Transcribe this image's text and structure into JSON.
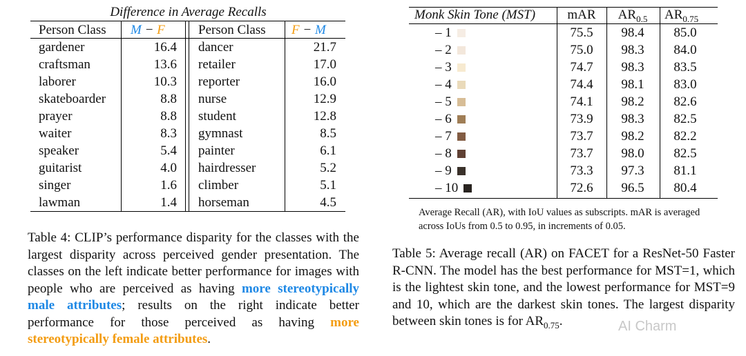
{
  "table4": {
    "title": "Difference in Average Recalls",
    "header_left": "Person Class",
    "header_left_metric": [
      "M",
      "−",
      "F"
    ],
    "header_right": "Person Class",
    "header_right_metric": [
      "F",
      "−",
      "M"
    ],
    "rows_left": [
      {
        "cls": "gardener",
        "val": "16.4"
      },
      {
        "cls": "craftsman",
        "val": "13.6"
      },
      {
        "cls": "laborer",
        "val": "10.3"
      },
      {
        "cls": "skateboarder",
        "val": "8.8"
      },
      {
        "cls": "prayer",
        "val": "8.8"
      },
      {
        "cls": "waiter",
        "val": "8.3"
      },
      {
        "cls": "speaker",
        "val": "5.4"
      },
      {
        "cls": "guitarist",
        "val": "4.0"
      },
      {
        "cls": "singer",
        "val": "1.6"
      },
      {
        "cls": "lawman",
        "val": "1.4"
      }
    ],
    "rows_right": [
      {
        "cls": "dancer",
        "val": "21.7"
      },
      {
        "cls": "retailer",
        "val": "17.0"
      },
      {
        "cls": "reporter",
        "val": "16.0"
      },
      {
        "cls": "nurse",
        "val": "12.9"
      },
      {
        "cls": "student",
        "val": "12.8"
      },
      {
        "cls": "gymnast",
        "val": "8.5"
      },
      {
        "cls": "painter",
        "val": "6.1"
      },
      {
        "cls": "hairdresser",
        "val": "5.2"
      },
      {
        "cls": "climber",
        "val": "5.1"
      },
      {
        "cls": "horseman",
        "val": "4.5"
      }
    ],
    "caption": {
      "part1": "Table 4: CLIP’s performance disparity for the classes with the largest disparity across perceived gender presentation. The classes on the left indicate better performance for images with people who are perceived as having ",
      "male_highlight": "more stereotypically male attributes",
      "part2": "; results on the right indicate better performance for those perceived as having ",
      "female_highlight": "more stereotypically female attributes",
      "part3": "."
    }
  },
  "table5": {
    "header_mst": "Monk Skin Tone (MST)",
    "header_mar": "mAR",
    "header_ar05": {
      "base": "AR",
      "sub": "0.5"
    },
    "header_ar075": {
      "base": "AR",
      "sub": "0.75"
    },
    "rows": [
      {
        "mst": "– 1",
        "color": "#f6ede4",
        "mar": "75.5",
        "ar05": "98.4",
        "ar075": "85.0"
      },
      {
        "mst": "– 2",
        "color": "#f3e7db",
        "mar": "75.0",
        "ar05": "98.3",
        "ar075": "84.0"
      },
      {
        "mst": "– 3",
        "color": "#f7ead0",
        "mar": "74.7",
        "ar05": "98.3",
        "ar075": "83.5"
      },
      {
        "mst": "– 4",
        "color": "#eadaba",
        "mar": "74.4",
        "ar05": "98.1",
        "ar075": "83.0"
      },
      {
        "mst": "– 5",
        "color": "#d7bd96",
        "mar": "74.1",
        "ar05": "98.2",
        "ar075": "82.6"
      },
      {
        "mst": "– 6",
        "color": "#a07e56",
        "mar": "73.9",
        "ar05": "98.3",
        "ar075": "82.5"
      },
      {
        "mst": "– 7",
        "color": "#825c43",
        "mar": "73.7",
        "ar05": "98.2",
        "ar075": "82.2"
      },
      {
        "mst": "– 8",
        "color": "#604134",
        "mar": "73.7",
        "ar05": "98.0",
        "ar075": "82.5"
      },
      {
        "mst": "– 9",
        "color": "#3a312a",
        "mar": "73.3",
        "ar05": "97.3",
        "ar075": "81.1"
      },
      {
        "mst": "– 10",
        "color": "#292420",
        "mar": "72.6",
        "ar05": "96.5",
        "ar075": "80.4"
      }
    ],
    "note": "Average Recall (AR), with IoU values as subscripts. mAR is averaged across IoUs from 0.5 to 0.95, in increments of 0.05.",
    "caption": {
      "main": "Table 5: Average recall (AR) on FACET for a ResNet-50 Faster R-CNN. The model has the best performance for MST=1, which is the lightest skin tone, and the lowest performance for MST=9 and 10, which are the darkest skin tones. The largest disparity between skin tones is for ",
      "ar_base": "AR",
      "ar_sub": "0.75",
      "end": "."
    }
  },
  "watermark": "AI Charm"
}
